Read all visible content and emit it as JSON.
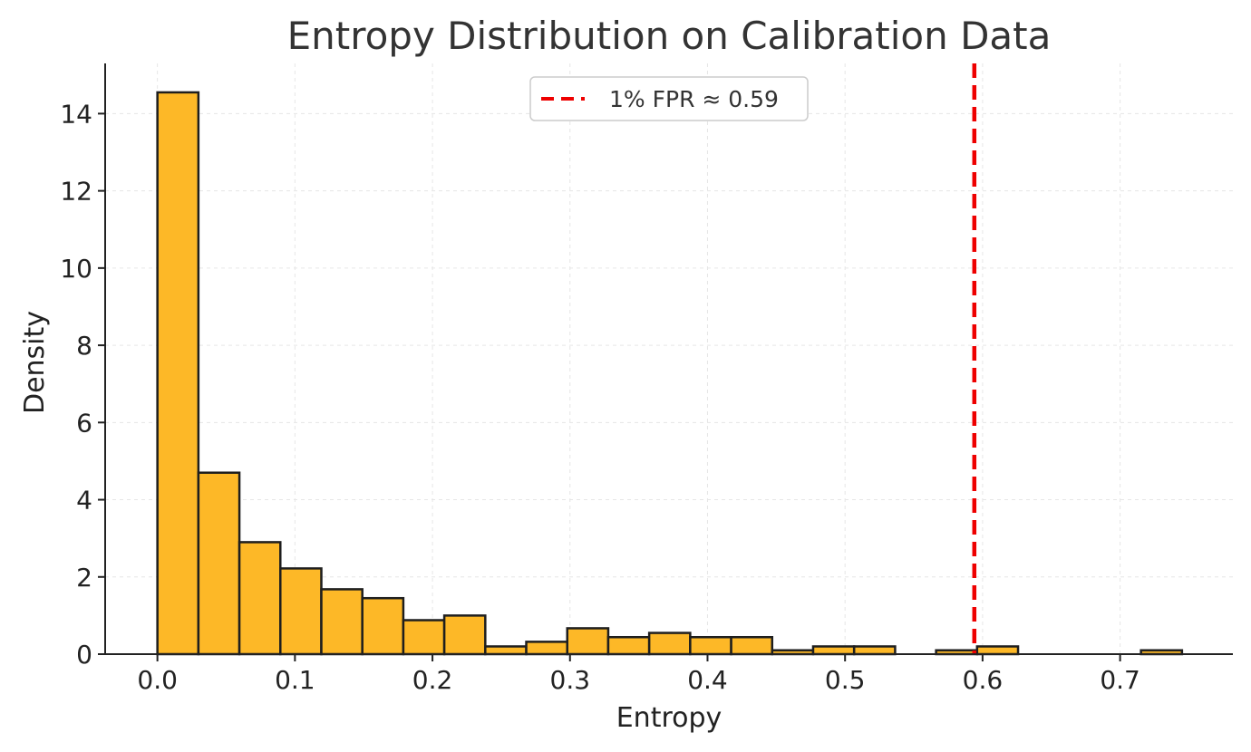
{
  "chart_data": {
    "type": "bar",
    "title": "Entropy Distribution on Calibration Data",
    "xlabel": "Entropy",
    "ylabel": "Density",
    "xlim": [
      -0.038,
      0.782
    ],
    "ylim": [
      0,
      15.3
    ],
    "xticks": [
      "0.0",
      "0.1",
      "0.2",
      "0.3",
      "0.4",
      "0.5",
      "0.6",
      "0.7"
    ],
    "xtick_values": [
      0.0,
      0.1,
      0.2,
      0.3,
      0.4,
      0.5,
      0.6,
      0.7
    ],
    "yticks": [
      "0",
      "2",
      "4",
      "6",
      "8",
      "10",
      "12",
      "14"
    ],
    "ytick_values": [
      0,
      2,
      4,
      6,
      8,
      10,
      12,
      14
    ],
    "grid": true,
    "legend_position": "top-center",
    "bin_start": 0.0,
    "bin_width": 0.0298,
    "values": [
      14.55,
      4.7,
      2.9,
      2.22,
      1.68,
      1.45,
      0.88,
      1.0,
      0.2,
      0.32,
      0.67,
      0.44,
      0.55,
      0.44,
      0.44,
      0.1,
      0.2,
      0.2,
      0.0,
      0.1,
      0.2,
      0.0,
      0.0,
      0.0,
      0.1
    ],
    "bar_color": "#fdb827",
    "bar_edge_color": "#1e1e1e",
    "threshold": {
      "x": 0.594,
      "label": "1% FPR ≈ 0.59",
      "color": "#ee0000",
      "style": "dashed"
    }
  }
}
